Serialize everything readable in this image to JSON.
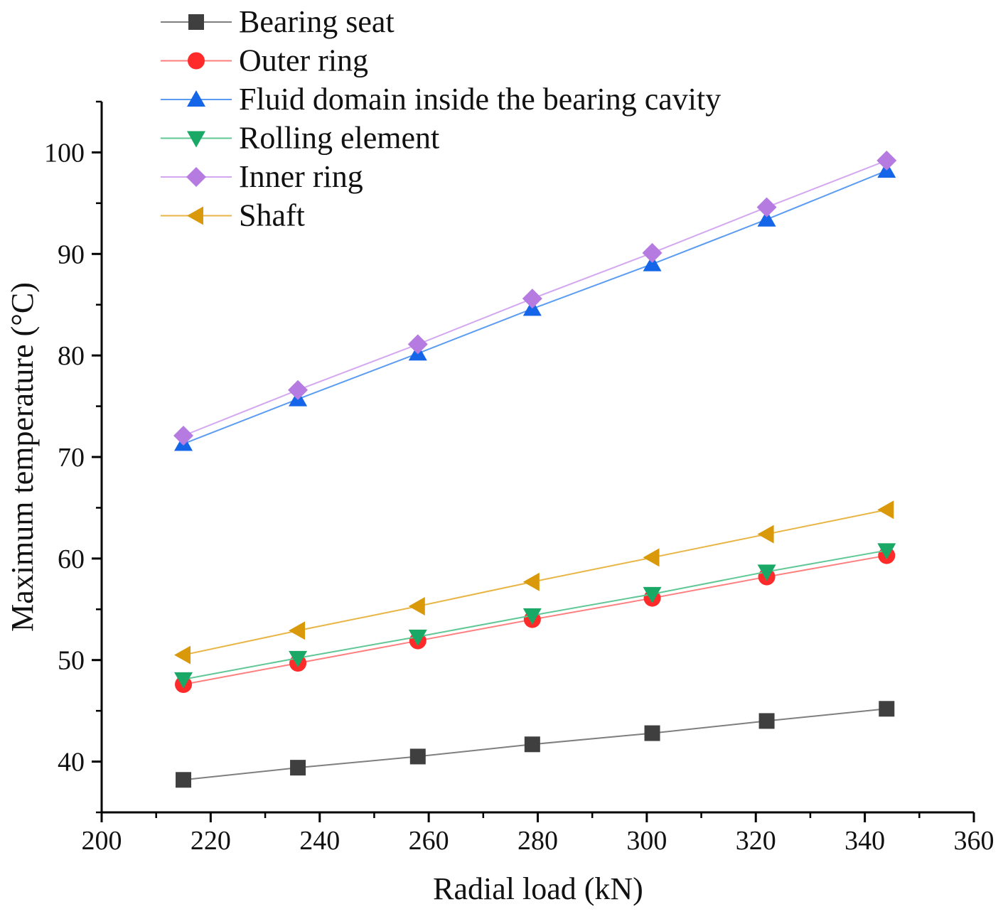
{
  "chart_data": {
    "type": "line",
    "title": "",
    "xlabel": "Radial load (kN)",
    "ylabel": "Maximum temperature (°C)",
    "xlim": [
      200,
      360
    ],
    "ylim": [
      35,
      105
    ],
    "x_ticks": [
      200,
      220,
      240,
      260,
      280,
      300,
      320,
      340,
      360
    ],
    "y_ticks": [
      40,
      50,
      60,
      70,
      80,
      90,
      100
    ],
    "grid": false,
    "legend_position": "top-left",
    "x": [
      215,
      236,
      258,
      279,
      301,
      322,
      344
    ],
    "series": [
      {
        "name": "Bearing seat",
        "marker": "square",
        "color": "#3f3f3f",
        "line_color": "#7f7f7f",
        "values": [
          38.2,
          39.4,
          40.5,
          41.7,
          42.8,
          44.0,
          45.2
        ]
      },
      {
        "name": "Outer ring",
        "marker": "circle",
        "color": "#ff2a2a",
        "line_color": "#ff7f7f",
        "values": [
          47.6,
          49.7,
          51.9,
          54.0,
          56.1,
          58.2,
          60.3
        ]
      },
      {
        "name": "Fluid domain inside the bearing cavity",
        "marker": "triangle-up",
        "color": "#1565e8",
        "line_color": "#5b9cf2",
        "values": [
          71.3,
          75.7,
          80.2,
          84.6,
          89.0,
          93.4,
          98.2
        ]
      },
      {
        "name": "Rolling element",
        "marker": "triangle-down",
        "color": "#1aa866",
        "line_color": "#5fc896",
        "values": [
          48.1,
          50.2,
          52.3,
          54.4,
          56.5,
          58.7,
          60.8
        ]
      },
      {
        "name": "Inner ring",
        "marker": "diamond",
        "color": "#b57be0",
        "line_color": "#d4a8f0",
        "values": [
          72.1,
          76.6,
          81.1,
          85.6,
          90.1,
          94.6,
          99.2
        ]
      },
      {
        "name": "Shaft",
        "marker": "triangle-left",
        "color": "#d9990a",
        "line_color": "#e8b545",
        "values": [
          50.5,
          52.9,
          55.3,
          57.7,
          60.1,
          62.4,
          64.8
        ]
      }
    ]
  }
}
